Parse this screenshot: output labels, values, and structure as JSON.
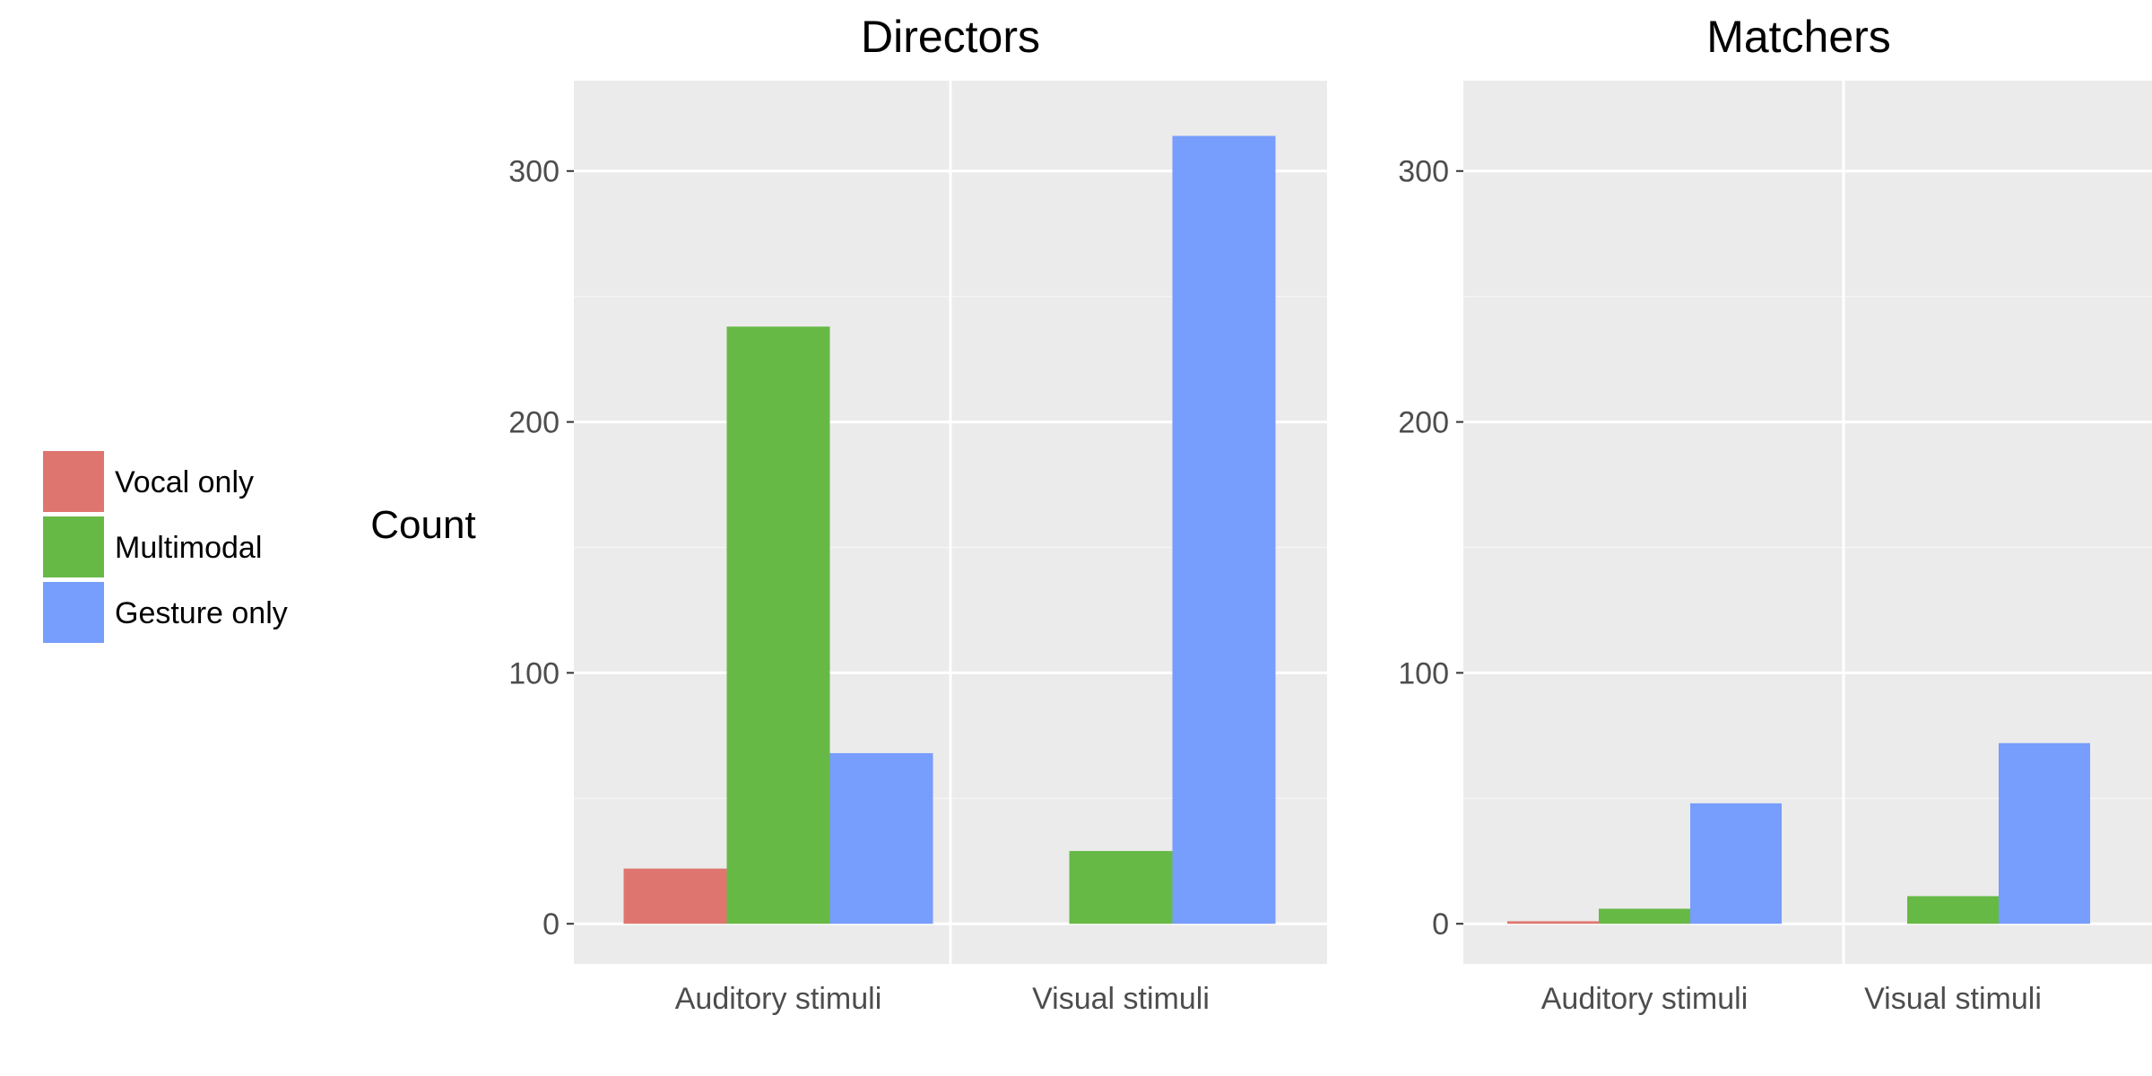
{
  "chart_data": {
    "type": "bar",
    "ylabel": "Count",
    "ylim": [
      -16,
      336
    ],
    "yticks": [
      0,
      100,
      200,
      300
    ],
    "grid": true,
    "legend_position": "left",
    "categories": [
      "Auditory stimuli",
      "Visual stimuli"
    ],
    "legend": [
      {
        "name": "Vocal only",
        "color": "#de766f"
      },
      {
        "name": "Multimodal",
        "color": "#67b946"
      },
      {
        "name": "Gesture only",
        "color": "#779dfd"
      }
    ],
    "facets": [
      {
        "title": "Directors",
        "series": [
          {
            "name": "Vocal only",
            "values": [
              22,
              0
            ]
          },
          {
            "name": "Multimodal",
            "values": [
              238,
              29
            ]
          },
          {
            "name": "Gesture only",
            "values": [
              68,
              314
            ]
          }
        ]
      },
      {
        "title": "Matchers",
        "series": [
          {
            "name": "Vocal only",
            "values": [
              1,
              0
            ]
          },
          {
            "name": "Multimodal",
            "values": [
              6,
              11
            ]
          },
          {
            "name": "Gesture only",
            "values": [
              48,
              72
            ]
          }
        ]
      }
    ]
  }
}
